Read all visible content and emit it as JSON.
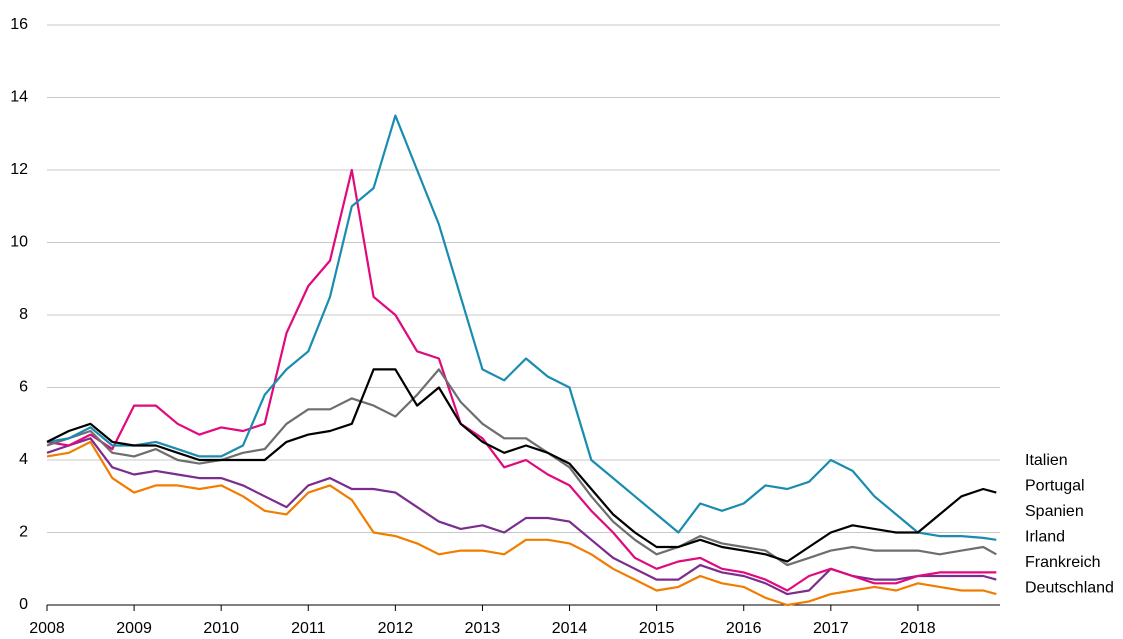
{
  "chart_data": {
    "type": "line",
    "x": [
      2008,
      2008.25,
      2008.5,
      2008.75,
      2009,
      2009.25,
      2009.5,
      2009.75,
      2010,
      2010.25,
      2010.5,
      2010.75,
      2011,
      2011.25,
      2011.5,
      2011.75,
      2012,
      2012.25,
      2012.5,
      2012.75,
      2013,
      2013.25,
      2013.5,
      2013.75,
      2014,
      2014.25,
      2014.5,
      2014.75,
      2015,
      2015.25,
      2015.5,
      2015.75,
      2016,
      2016.25,
      2016.5,
      2016.75,
      2017,
      2017.25,
      2017.5,
      2017.75,
      2018,
      2018.25,
      2018.5,
      2018.75,
      2018.9
    ],
    "series": [
      {
        "name": "Italien",
        "color": "#000000",
        "values": [
          4.5,
          4.8,
          5.0,
          4.5,
          4.4,
          4.4,
          4.2,
          4.0,
          4.0,
          4.0,
          4.0,
          4.5,
          4.7,
          4.8,
          5.0,
          6.5,
          6.5,
          5.5,
          6.0,
          5.0,
          4.5,
          4.2,
          4.4,
          4.2,
          3.9,
          3.2,
          2.5,
          2.0,
          1.6,
          1.6,
          1.8,
          1.6,
          1.5,
          1.4,
          1.2,
          1.6,
          2.0,
          2.2,
          2.1,
          2.0,
          2.0,
          2.5,
          3.0,
          3.2,
          3.1
        ]
      },
      {
        "name": "Portugal",
        "color": "#1a8cb0",
        "values": [
          4.5,
          4.6,
          4.9,
          4.4,
          4.4,
          4.5,
          4.3,
          4.1,
          4.1,
          4.4,
          5.8,
          6.5,
          7.0,
          8.5,
          11.0,
          11.5,
          13.5,
          12.0,
          10.5,
          8.5,
          6.5,
          6.2,
          6.8,
          6.3,
          6.0,
          4.0,
          3.5,
          3.0,
          2.5,
          2.0,
          2.8,
          2.6,
          2.8,
          3.3,
          3.2,
          3.4,
          4.0,
          3.7,
          3.0,
          2.5,
          2.0,
          1.9,
          1.9,
          1.85,
          1.8
        ]
      },
      {
        "name": "Spanien",
        "color": "#6e6e6e",
        "values": [
          4.4,
          4.6,
          4.8,
          4.2,
          4.1,
          4.3,
          4.0,
          3.9,
          4.0,
          4.2,
          4.3,
          5.0,
          5.4,
          5.4,
          5.7,
          5.5,
          5.2,
          5.8,
          6.5,
          5.6,
          5.0,
          4.6,
          4.6,
          4.2,
          3.8,
          3.0,
          2.3,
          1.8,
          1.4,
          1.6,
          1.9,
          1.7,
          1.6,
          1.5,
          1.1,
          1.3,
          1.5,
          1.6,
          1.5,
          1.5,
          1.5,
          1.4,
          1.5,
          1.6,
          1.4
        ]
      },
      {
        "name": "Irland",
        "color": "#e0097e",
        "values": [
          4.5,
          4.4,
          4.7,
          4.3,
          5.5,
          5.5,
          5.0,
          4.7,
          4.9,
          4.8,
          5.0,
          7.5,
          8.8,
          9.5,
          12.0,
          8.5,
          8.0,
          7.0,
          6.8,
          5.0,
          4.6,
          3.8,
          4.0,
          3.6,
          3.3,
          2.6,
          2.0,
          1.3,
          1.0,
          1.2,
          1.3,
          1.0,
          0.9,
          0.7,
          0.4,
          0.8,
          1.0,
          0.8,
          0.6,
          0.6,
          0.8,
          0.9,
          0.9,
          0.9,
          0.9
        ]
      },
      {
        "name": "Frankreich",
        "color": "#7b2d8e",
        "values": [
          4.2,
          4.4,
          4.6,
          3.8,
          3.6,
          3.7,
          3.6,
          3.5,
          3.5,
          3.3,
          3.0,
          2.7,
          3.3,
          3.5,
          3.2,
          3.2,
          3.1,
          2.7,
          2.3,
          2.1,
          2.2,
          2.0,
          2.4,
          2.4,
          2.3,
          1.8,
          1.3,
          1.0,
          0.7,
          0.7,
          1.1,
          0.9,
          0.8,
          0.6,
          0.3,
          0.4,
          1.0,
          0.8,
          0.7,
          0.7,
          0.8,
          0.8,
          0.8,
          0.8,
          0.7
        ]
      },
      {
        "name": "Deutschland",
        "color": "#f07d00",
        "values": [
          4.1,
          4.2,
          4.5,
          3.5,
          3.1,
          3.3,
          3.3,
          3.2,
          3.3,
          3.0,
          2.6,
          2.5,
          3.1,
          3.3,
          2.9,
          2.0,
          1.9,
          1.7,
          1.4,
          1.5,
          1.5,
          1.4,
          1.8,
          1.8,
          1.7,
          1.4,
          1.0,
          0.7,
          0.4,
          0.5,
          0.8,
          0.6,
          0.5,
          0.2,
          0.0,
          0.1,
          0.3,
          0.4,
          0.5,
          0.4,
          0.6,
          0.5,
          0.4,
          0.4,
          0.3
        ]
      }
    ],
    "xlim": [
      2008,
      2019
    ],
    "xticks": [
      2008,
      2009,
      2010,
      2011,
      2012,
      2013,
      2014,
      2015,
      2016,
      2017,
      2018
    ],
    "ylim": [
      0,
      16
    ],
    "yticks": [
      0,
      2,
      4,
      6,
      8,
      10,
      12,
      14,
      16
    ],
    "grid": true
  }
}
